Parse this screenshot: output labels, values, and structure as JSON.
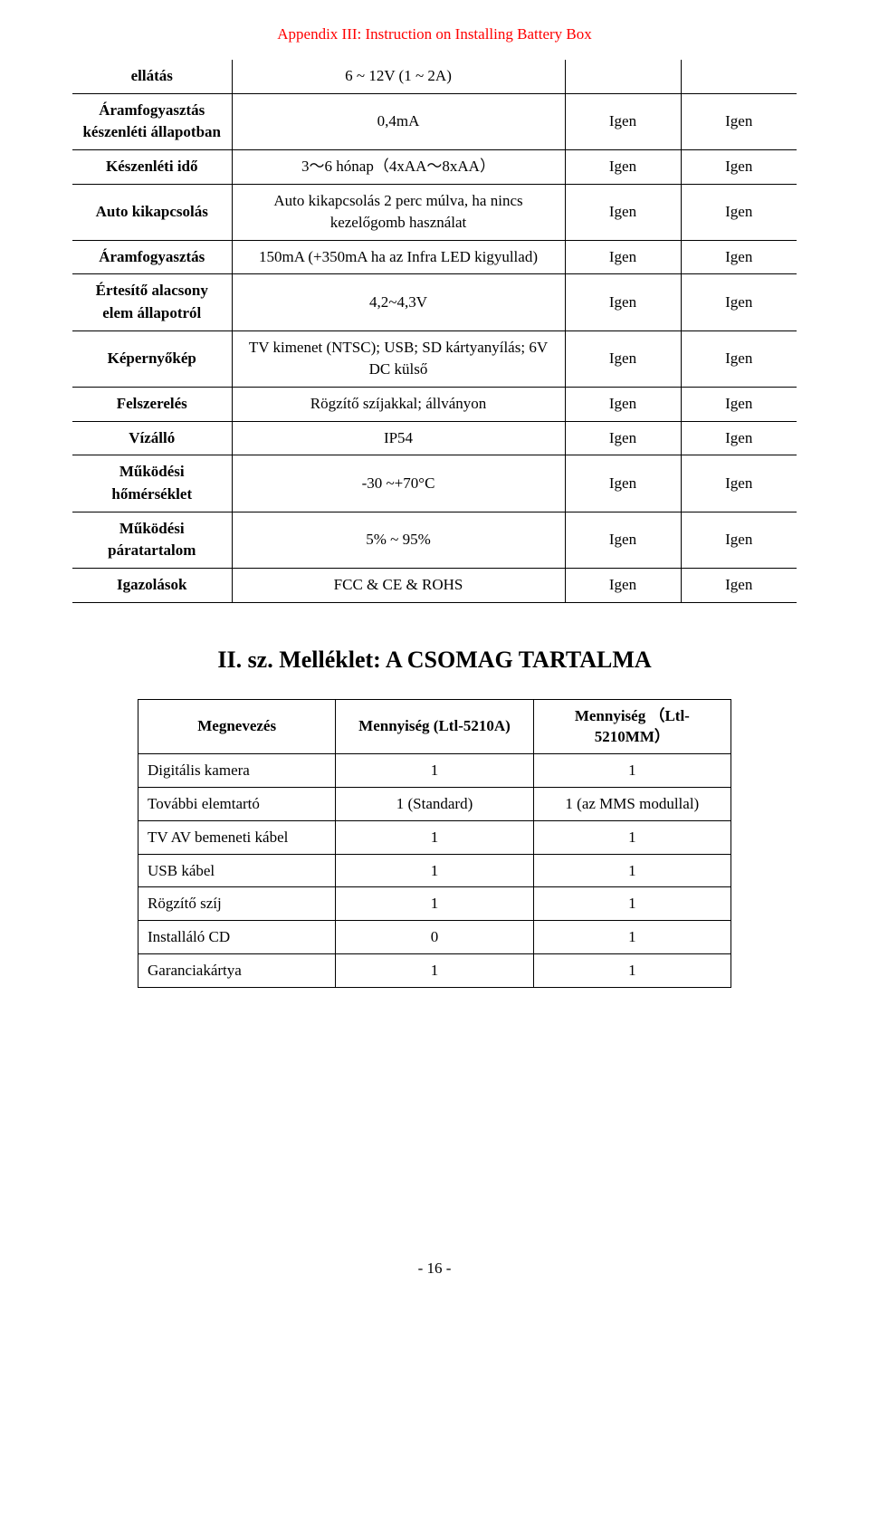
{
  "header": "Appendix III: Instruction on Installing Battery Box",
  "spec_table": {
    "rows": [
      {
        "label": "ellátás",
        "value": "6 ~ 12V (1 ~ 2A)",
        "c1": "",
        "c2": ""
      },
      {
        "label": "Áramfogyasztás készenléti állapotban",
        "value": "0,4mA",
        "c1": "Igen",
        "c2": "Igen"
      },
      {
        "label": "Készenléti idő",
        "value": "3～6 hónap（4xAA～8xAA）",
        "c1": "Igen",
        "c2": "Igen"
      },
      {
        "label": "Auto kikapcsolás",
        "value": "Auto kikapcsolás 2 perc múlva, ha nincs kezelőgomb használat",
        "c1": "Igen",
        "c2": "Igen"
      },
      {
        "label": "Áramfogyasztás",
        "value": "150mA (+350mA ha az Infra LED kigyullad)",
        "c1": "Igen",
        "c2": "Igen"
      },
      {
        "label": "Értesítő alacsony elem állapotról",
        "value": "4,2~4,3V",
        "c1": "Igen",
        "c2": "Igen"
      },
      {
        "label": "Képernyőkép",
        "value": "TV kimenet (NTSC); USB; SD kártyanyílás; 6V DC külső",
        "c1": "Igen",
        "c2": "Igen"
      },
      {
        "label": "Felszerelés",
        "value": "Rögzítő szíjakkal; állványon",
        "c1": "Igen",
        "c2": "Igen"
      },
      {
        "label": "Vízálló",
        "value": "IP54",
        "c1": "Igen",
        "c2": "Igen"
      },
      {
        "label": "Működési hőmérséklet",
        "value": "-30 ~+70°C",
        "c1": "Igen",
        "c2": "Igen"
      },
      {
        "label": "Működési páratartalom",
        "value": "5% ~ 95%",
        "c1": "Igen",
        "c2": "Igen"
      },
      {
        "label": "Igazolások",
        "value": "FCC & CE & ROHS",
        "c1": "Igen",
        "c2": "Igen"
      }
    ]
  },
  "section_title": "II. sz. Melléklet: A CSOMAG TARTALMA",
  "pkg_table": {
    "headers": [
      "Megnevezés",
      "Mennyiség (Ltl-5210A)",
      "Mennyiség （Ltl-5210MM）"
    ],
    "rows": [
      {
        "name": "Digitális kamera",
        "q1": "1",
        "q2": "1"
      },
      {
        "name": "További elemtartó",
        "q1": "1 (Standard)",
        "q2": "1 (az MMS modullal)"
      },
      {
        "name": "TV AV bemeneti kábel",
        "q1": "1",
        "q2": "1"
      },
      {
        "name": "USB kábel",
        "q1": "1",
        "q2": "1"
      },
      {
        "name": "Rögzítő szíj",
        "q1": "1",
        "q2": "1"
      },
      {
        "name": "Installáló CD",
        "q1": "0",
        "q2": "1"
      },
      {
        "name": "Garanciakártya",
        "q1": "1",
        "q2": "1"
      }
    ]
  },
  "page_number": "- 16 -"
}
